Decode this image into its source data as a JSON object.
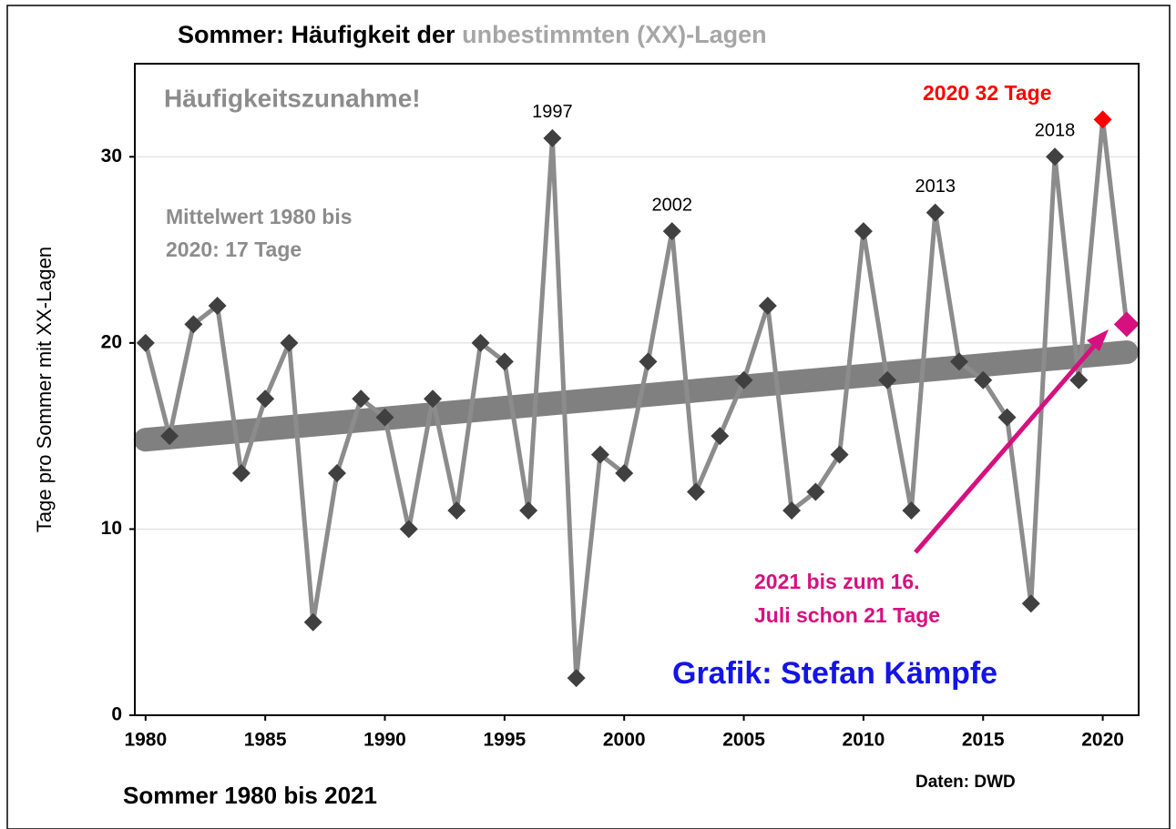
{
  "chart_data": {
    "type": "line",
    "title": "Sommer: Häufigkeit der",
    "title_highlight": "unbestimmten (XX)-Lagen",
    "ylabel": "Tage pro Sommer mit XX-Lagen",
    "xlabel": "Sommer  1980 bis 2021",
    "source": "Daten: DWD",
    "credit": "Grafik: Stefan Kämpfe",
    "annotations": {
      "increase": "Häufigkeitszunahme!",
      "mean": [
        "Mittelwert 1980 bis",
        "2020: 17 Tage"
      ],
      "max": "2020 32 Tage",
      "current": [
        "2021 bis zum 16.",
        "Juli schon 21 Tage"
      ]
    },
    "point_labels": [
      1997,
      2002,
      2013,
      2018
    ],
    "x": [
      1980,
      1981,
      1982,
      1983,
      1984,
      1985,
      1986,
      1987,
      1988,
      1989,
      1990,
      1991,
      1992,
      1993,
      1994,
      1995,
      1996,
      1997,
      1998,
      1999,
      2000,
      2001,
      2002,
      2003,
      2004,
      2005,
      2006,
      2007,
      2008,
      2009,
      2010,
      2011,
      2012,
      2013,
      2014,
      2015,
      2016,
      2017,
      2018,
      2019,
      2020,
      2021
    ],
    "series": [
      {
        "color": "#8c8c8c",
        "marker_color": "#404040",
        "values": [
          20,
          15,
          21,
          22,
          13,
          17,
          20,
          5,
          13,
          17,
          16,
          10,
          17,
          11,
          20,
          19,
          11,
          31,
          2,
          14,
          13,
          19,
          26,
          12,
          15,
          18,
          22,
          11,
          12,
          14,
          26,
          18,
          11,
          27,
          19,
          18,
          16,
          6,
          30,
          18,
          32,
          21
        ]
      }
    ],
    "max_color": "#ff0000",
    "last_color": "#d6107f",
    "trend": {
      "color": "#808080",
      "x": [
        1980,
        2021
      ],
      "values": [
        14.8,
        19.5
      ]
    },
    "xlim": [
      1979.55,
      2021.5
    ],
    "ylim": [
      0,
      35
    ],
    "xticks": [
      1980,
      1985,
      1990,
      1995,
      2000,
      2005,
      2010,
      2015,
      2020
    ],
    "yticks": [
      0,
      10,
      20,
      30
    ],
    "grid": true
  }
}
